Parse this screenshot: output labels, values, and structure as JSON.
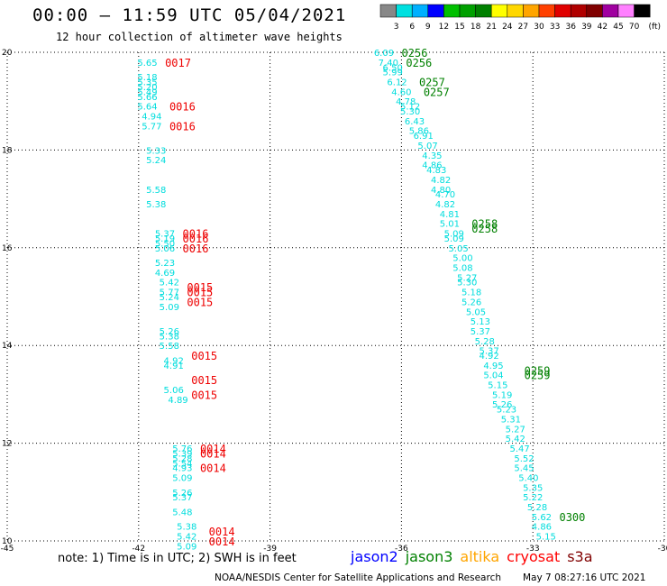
{
  "title": "00:00 – 11:59 UTC 05/04/2021",
  "subtitle": "12 hour collection of altimeter wave heights",
  "colorbar": {
    "labels": [
      "3",
      "6",
      "9",
      "12",
      "15",
      "18",
      "21",
      "24",
      "27",
      "30",
      "33",
      "36",
      "39",
      "42",
      "45",
      "70"
    ],
    "unit": "(ft)",
    "colors": [
      "#888888",
      "#00e0e0",
      "#00b0ff",
      "#0000ff",
      "#00c000",
      "#00a000",
      "#008000",
      "#ffff00",
      "#ffd700",
      "#ffa500",
      "#ff4000",
      "#e00000",
      "#b00000",
      "#800000",
      "#a000a0",
      "#ff80ff",
      "#000000"
    ]
  },
  "legend": {
    "items": [
      {
        "label": "jason2",
        "color": "#0000ff"
      },
      {
        "label": "jason3",
        "color": "#008000"
      },
      {
        "label": "altika",
        "color": "#ffa500"
      },
      {
        "label": "cryosat",
        "color": "#ff0000"
      },
      {
        "label": "s3a",
        "color": "#800000"
      }
    ]
  },
  "note": "note: 1) Time is in UTC; 2) SWH is in feet",
  "credit": "NOAA/NESDIS Center for Satellite Applications and Research",
  "credit_date": "May  7 08:27:16 UTC 2021",
  "chart_data": {
    "type": "scatter",
    "xlim": [
      -45,
      -30
    ],
    "ylim": [
      10,
      20
    ],
    "x_ticks": [
      -45,
      -42,
      -39,
      -36,
      -33,
      -30
    ],
    "y_ticks": [
      10,
      12,
      14,
      16,
      18,
      20
    ],
    "x_tick_labels": [
      "-45",
      "-42",
      "-39",
      "-36",
      "-33",
      "-30"
    ],
    "y_tick_labels": [
      "10",
      "12",
      "14",
      "16",
      "18",
      "20"
    ],
    "grid": true,
    "swh_color": "#00dddd",
    "series": [
      {
        "name": "cryosat",
        "color": "#00dddd",
        "points": [
          [
            -41.8,
            19.8,
            "5.65"
          ],
          [
            -41.8,
            19.5,
            "5.18"
          ],
          [
            -41.8,
            19.4,
            "5.35"
          ],
          [
            -41.8,
            19.3,
            "5.20"
          ],
          [
            -41.8,
            19.2,
            "5.49"
          ],
          [
            -41.8,
            19.1,
            "5.66"
          ],
          [
            -41.8,
            18.9,
            "5.64"
          ],
          [
            -41.7,
            18.7,
            "4.94"
          ],
          [
            -41.7,
            18.5,
            "5.77"
          ],
          [
            -41.6,
            18.0,
            "5.33"
          ],
          [
            -41.6,
            17.8,
            "5.24"
          ],
          [
            -41.6,
            17.2,
            "5.58"
          ],
          [
            -41.6,
            16.9,
            "5.38"
          ],
          [
            -41.4,
            16.3,
            "5.37"
          ],
          [
            -41.4,
            16.2,
            "5.19"
          ],
          [
            -41.4,
            16.1,
            "5.50"
          ],
          [
            -41.4,
            16.0,
            "5.06"
          ],
          [
            -41.4,
            15.7,
            "5.23"
          ],
          [
            -41.4,
            15.5,
            "4.69"
          ],
          [
            -41.3,
            15.3,
            "5.42"
          ],
          [
            -41.3,
            15.1,
            "5.77"
          ],
          [
            -41.3,
            15.0,
            "5.24"
          ],
          [
            -41.3,
            14.8,
            "5.09"
          ],
          [
            -41.3,
            14.3,
            "5.26"
          ],
          [
            -41.3,
            14.2,
            "5.38"
          ],
          [
            -41.3,
            14.0,
            "5.58"
          ],
          [
            -41.2,
            13.7,
            "4.92"
          ],
          [
            -41.2,
            13.6,
            "4.91"
          ],
          [
            -41.2,
            13.1,
            "5.06"
          ],
          [
            -41.1,
            12.9,
            "4.89"
          ],
          [
            -41.0,
            11.9,
            "5.76"
          ],
          [
            -41.0,
            11.8,
            "5.39"
          ],
          [
            -41.0,
            11.7,
            "5.28"
          ],
          [
            -41.0,
            11.6,
            "5.54"
          ],
          [
            -41.0,
            11.5,
            "4.93"
          ],
          [
            -41.0,
            11.3,
            "5.09"
          ],
          [
            -41.0,
            11.0,
            "5.26"
          ],
          [
            -41.0,
            10.9,
            "5.37"
          ],
          [
            -41.0,
            10.6,
            "5.48"
          ],
          [
            -40.9,
            10.3,
            "5.38"
          ],
          [
            -40.9,
            10.1,
            "5.42"
          ],
          [
            -40.9,
            9.9,
            "5.09"
          ]
        ]
      },
      {
        "name": "jason3",
        "color": "#00dddd",
        "points": [
          [
            -36.4,
            20.0,
            "6.09"
          ],
          [
            -36.3,
            19.8,
            "7.40"
          ],
          [
            -36.2,
            19.7,
            "6.50"
          ],
          [
            -36.2,
            19.6,
            "5.99"
          ],
          [
            -36.1,
            19.4,
            "6.12"
          ],
          [
            -36.0,
            19.2,
            "4.60"
          ],
          [
            -35.9,
            19.0,
            "4.78"
          ],
          [
            -35.8,
            18.9,
            "5.12"
          ],
          [
            -35.8,
            18.8,
            "5.30"
          ],
          [
            -35.7,
            18.6,
            "6.43"
          ],
          [
            -35.6,
            18.4,
            "5.86"
          ],
          [
            -35.5,
            18.3,
            "6.91"
          ],
          [
            -35.4,
            18.1,
            "5.07"
          ],
          [
            -35.3,
            17.9,
            "4.35"
          ],
          [
            -35.3,
            17.7,
            "4.86"
          ],
          [
            -35.2,
            17.6,
            "4.83"
          ],
          [
            -35.1,
            17.4,
            "4.82"
          ],
          [
            -35.1,
            17.2,
            "4.80"
          ],
          [
            -35.0,
            17.1,
            "4.70"
          ],
          [
            -35.0,
            16.9,
            "4.82"
          ],
          [
            -34.9,
            16.7,
            "4.81"
          ],
          [
            -34.9,
            16.5,
            "5.01"
          ],
          [
            -34.8,
            16.3,
            "5.09"
          ],
          [
            -34.8,
            16.2,
            "5.09"
          ],
          [
            -34.7,
            16.0,
            "5.05"
          ],
          [
            -34.6,
            15.8,
            "5.00"
          ],
          [
            -34.6,
            15.6,
            "5.08"
          ],
          [
            -34.5,
            15.4,
            "5.27"
          ],
          [
            -34.5,
            15.3,
            "5.30"
          ],
          [
            -34.4,
            15.1,
            "5.18"
          ],
          [
            -34.4,
            14.9,
            "5.26"
          ],
          [
            -34.3,
            14.7,
            "5.05"
          ],
          [
            -34.2,
            14.5,
            "5.13"
          ],
          [
            -34.2,
            14.3,
            "5.37"
          ],
          [
            -34.1,
            14.1,
            "5.28"
          ],
          [
            -34.0,
            13.9,
            "5.37"
          ],
          [
            -34.0,
            13.8,
            "4.92"
          ],
          [
            -33.9,
            13.6,
            "4.95"
          ],
          [
            -33.9,
            13.4,
            "5.04"
          ],
          [
            -33.8,
            13.2,
            "5.15"
          ],
          [
            -33.7,
            13.0,
            "5.19"
          ],
          [
            -33.7,
            12.8,
            "5.26"
          ],
          [
            -33.6,
            12.7,
            "5.23"
          ],
          [
            -33.5,
            12.5,
            "5.31"
          ],
          [
            -33.4,
            12.3,
            "5.27"
          ],
          [
            -33.4,
            12.1,
            "5.42"
          ],
          [
            -33.3,
            11.9,
            "5.47"
          ],
          [
            -33.2,
            11.7,
            "5.52"
          ],
          [
            -33.2,
            11.5,
            "5.45"
          ],
          [
            -33.1,
            11.3,
            "5.40"
          ],
          [
            -33.0,
            11.1,
            "5.35"
          ],
          [
            -33.0,
            10.9,
            "5.22"
          ],
          [
            -32.9,
            10.7,
            "5.28"
          ],
          [
            -32.8,
            10.5,
            "5.62"
          ],
          [
            -32.8,
            10.3,
            "4.86"
          ],
          [
            -32.7,
            10.1,
            "5.15"
          ]
        ]
      }
    ],
    "time_labels": [
      {
        "x": -41.1,
        "y": 19.8,
        "text": "0017",
        "color": "#ee0000"
      },
      {
        "x": -41.0,
        "y": 18.9,
        "text": "0016",
        "color": "#ee0000"
      },
      {
        "x": -41.0,
        "y": 18.5,
        "text": "0016",
        "color": "#ee0000"
      },
      {
        "x": -40.7,
        "y": 16.3,
        "text": "0016",
        "color": "#ee0000"
      },
      {
        "x": -40.7,
        "y": 16.2,
        "text": "0016",
        "color": "#ee0000"
      },
      {
        "x": -40.7,
        "y": 16.0,
        "text": "0016",
        "color": "#ee0000"
      },
      {
        "x": -40.6,
        "y": 15.2,
        "text": "0015",
        "color": "#ee0000"
      },
      {
        "x": -40.6,
        "y": 15.1,
        "text": "0015",
        "color": "#ee0000"
      },
      {
        "x": -40.6,
        "y": 14.9,
        "text": "0015",
        "color": "#ee0000"
      },
      {
        "x": -40.5,
        "y": 13.8,
        "text": "0015",
        "color": "#ee0000"
      },
      {
        "x": -40.5,
        "y": 13.3,
        "text": "0015",
        "color": "#ee0000"
      },
      {
        "x": -40.5,
        "y": 13.0,
        "text": "0015",
        "color": "#ee0000"
      },
      {
        "x": -40.3,
        "y": 11.9,
        "text": "0014",
        "color": "#ee0000"
      },
      {
        "x": -40.3,
        "y": 11.8,
        "text": "0014",
        "color": "#ee0000"
      },
      {
        "x": -40.3,
        "y": 11.5,
        "text": "0014",
        "color": "#ee0000"
      },
      {
        "x": -40.1,
        "y": 10.2,
        "text": "0014",
        "color": "#ee0000"
      },
      {
        "x": -40.1,
        "y": 10.0,
        "text": "0014",
        "color": "#ee0000"
      },
      {
        "x": -35.7,
        "y": 20.0,
        "text": "0256",
        "color": "#008000"
      },
      {
        "x": -35.6,
        "y": 19.8,
        "text": "0256",
        "color": "#008000"
      },
      {
        "x": -35.3,
        "y": 19.4,
        "text": "0257",
        "color": "#008000"
      },
      {
        "x": -35.2,
        "y": 19.2,
        "text": "0257",
        "color": "#008000"
      },
      {
        "x": -34.1,
        "y": 16.5,
        "text": "0258",
        "color": "#008000"
      },
      {
        "x": -34.1,
        "y": 16.4,
        "text": "0258",
        "color": "#008000"
      },
      {
        "x": -32.9,
        "y": 13.5,
        "text": "0259",
        "color": "#008000"
      },
      {
        "x": -32.9,
        "y": 13.4,
        "text": "0259",
        "color": "#008000"
      },
      {
        "x": -32.1,
        "y": 10.5,
        "text": "0300",
        "color": "#008000"
      }
    ]
  }
}
